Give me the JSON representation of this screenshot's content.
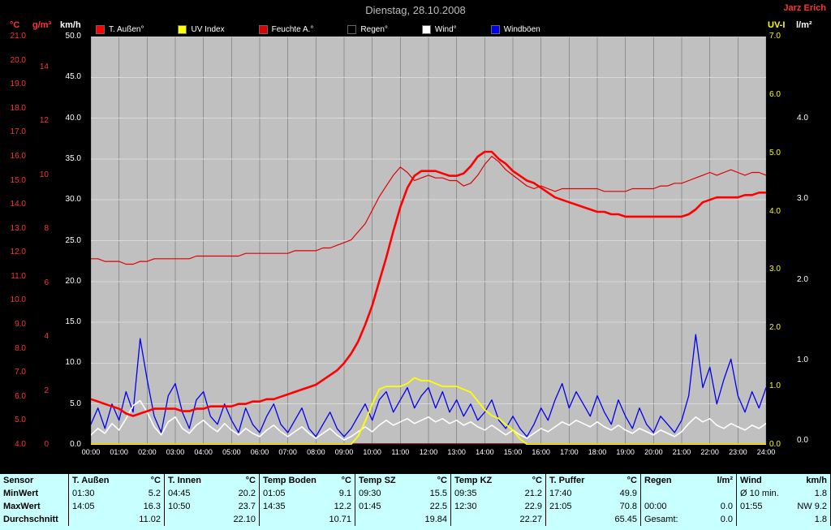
{
  "header": {
    "title": "Dienstag, 28.10.2008",
    "station": "Jarz Erich"
  },
  "axes": {
    "temp": {
      "unit": "°C",
      "min": 4,
      "max": 21,
      "ticks": [
        "21.0",
        "20.0",
        "19.0",
        "18.0",
        "17.0",
        "16.0",
        "15.0",
        "14.0",
        "13.0",
        "12.0",
        "11.0",
        "10.0",
        "9.0",
        "8.0",
        "7.0",
        "6.0",
        "5.0",
        "4.0"
      ]
    },
    "gm3": {
      "unit": "g/m³",
      "min": 0,
      "max": 14,
      "ticks": [
        "14",
        "12",
        "10",
        "8",
        "6",
        "4",
        "2",
        "0"
      ]
    },
    "kmh": {
      "unit": "km/h",
      "min": 0,
      "max": 50,
      "ticks": [
        "50.0",
        "45.0",
        "40.0",
        "35.0",
        "30.0",
        "25.0",
        "20.0",
        "15.0",
        "10.0",
        "5.0",
        "0.0"
      ]
    },
    "uv": {
      "unit": "UV-I",
      "min": 0,
      "max": 7,
      "ticks": [
        "7.0",
        "6.0",
        "5.0",
        "4.0",
        "3.0",
        "2.0",
        "1.0",
        "0.0"
      ]
    },
    "lm2": {
      "unit": "l/m²",
      "min": 0,
      "max": 5,
      "ticks": [
        "4.0",
        "3.0",
        "2.0",
        "1.0",
        "0.0"
      ]
    }
  },
  "legend": [
    {
      "label": "T. Außen°",
      "color": "#ff0000"
    },
    {
      "label": "UV Index",
      "color": "#ffff00"
    },
    {
      "label": "Feuchte A.°",
      "color": "#e00000"
    },
    {
      "label": "Regen°",
      "color": "#000000"
    },
    {
      "label": "Wind°",
      "color": "#ffffff"
    },
    {
      "label": "Windböen",
      "color": "#0000ee"
    }
  ],
  "chart_data": {
    "type": "line",
    "title": "Dienstag, 28.10.2008",
    "x_start_hour": 0,
    "x_step_hours": 0.25,
    "x_labels": [
      "00:00",
      "01:00",
      "02:00",
      "03:00",
      "04:00",
      "05:00",
      "06:00",
      "07:00",
      "08:00",
      "09:00",
      "10:00",
      "11:00",
      "12:00",
      "13:00",
      "14:00",
      "15:00",
      "16:00",
      "17:00",
      "18:00",
      "19:00",
      "20:00",
      "21:00",
      "22:00",
      "23:00",
      "24:00"
    ],
    "series": [
      {
        "name": "Regen",
        "axis": "lm2",
        "color": "#000000",
        "width": 1.2,
        "constant": 0
      },
      {
        "name": "Windböen",
        "axis": "kmh",
        "color": "#0000ee",
        "width": 1.3,
        "values": [
          2.5,
          4.5,
          2.0,
          5.0,
          3.0,
          6.5,
          4.0,
          13.0,
          8.0,
          3.5,
          1.5,
          6.0,
          7.5,
          4.0,
          2.0,
          5.5,
          6.5,
          3.5,
          2.5,
          5.0,
          3.0,
          1.5,
          4.5,
          2.5,
          1.5,
          3.5,
          5.0,
          2.5,
          1.5,
          3.0,
          4.5,
          2.0,
          1.0,
          2.5,
          4.0,
          2.0,
          1.0,
          2.0,
          3.5,
          5.0,
          3.0,
          5.5,
          6.5,
          4.0,
          5.5,
          7.0,
          4.5,
          6.0,
          7.0,
          4.5,
          6.5,
          4.0,
          5.5,
          3.5,
          5.0,
          3.0,
          4.0,
          5.5,
          3.0,
          2.0,
          3.5,
          2.0,
          1.0,
          2.5,
          4.5,
          3.0,
          5.5,
          7.5,
          4.5,
          6.5,
          5.0,
          3.5,
          6.0,
          4.0,
          2.5,
          5.5,
          3.5,
          2.0,
          4.5,
          2.5,
          1.5,
          3.5,
          2.5,
          1.5,
          3.0,
          6.0,
          13.5,
          7.0,
          9.5,
          5.0,
          8.0,
          10.5,
          6.0,
          4.0,
          6.5,
          4.5,
          7.0
        ]
      },
      {
        "name": "Wind",
        "axis": "kmh",
        "color": "#ffffff",
        "width": 1.6,
        "values": [
          1.2,
          2.0,
          1.4,
          2.6,
          1.8,
          3.2,
          4.8,
          5.4,
          4.0,
          2.2,
          1.2,
          2.8,
          3.4,
          2.0,
          1.4,
          2.4,
          3.0,
          2.2,
          1.6,
          2.6,
          1.8,
          1.2,
          2.0,
          1.4,
          1.0,
          1.8,
          2.4,
          1.6,
          1.0,
          1.6,
          2.2,
          1.4,
          0.8,
          1.4,
          2.0,
          1.2,
          0.6,
          1.0,
          1.6,
          2.2,
          1.6,
          2.4,
          3.0,
          2.4,
          2.8,
          3.2,
          2.6,
          3.0,
          3.4,
          2.8,
          3.2,
          2.6,
          3.0,
          2.4,
          2.8,
          2.2,
          1.8,
          2.4,
          1.8,
          1.2,
          1.8,
          1.2,
          0.8,
          1.4,
          2.0,
          1.6,
          2.2,
          2.8,
          2.4,
          3.0,
          2.6,
          2.2,
          2.8,
          2.2,
          1.8,
          2.4,
          1.8,
          1.4,
          2.0,
          1.6,
          1.2,
          1.8,
          1.4,
          1.0,
          1.6,
          2.6,
          3.4,
          2.8,
          3.2,
          2.4,
          2.0,
          2.6,
          2.2,
          1.8,
          2.4,
          2.0,
          2.6
        ]
      },
      {
        "name": "UV Index",
        "axis": "uv",
        "color": "#ffff00",
        "width": 1.8,
        "values": [
          0,
          0,
          0,
          0,
          0,
          0,
          0,
          0,
          0,
          0,
          0,
          0,
          0,
          0,
          0,
          0,
          0,
          0,
          0,
          0,
          0,
          0,
          0,
          0,
          0,
          0,
          0,
          0,
          0,
          0,
          0,
          0,
          0,
          0,
          0,
          0,
          0,
          0,
          0.15,
          0.4,
          0.7,
          0.95,
          1.0,
          1.0,
          1.0,
          1.05,
          1.15,
          1.1,
          1.1,
          1.05,
          1.0,
          1.0,
          1.0,
          0.95,
          0.9,
          0.75,
          0.6,
          0.5,
          0.45,
          0.35,
          0.25,
          0.1,
          0,
          0,
          0,
          0,
          0,
          0,
          0,
          0,
          0,
          0,
          0,
          0,
          0,
          0,
          0,
          0,
          0,
          0,
          0,
          0,
          0,
          0,
          0,
          0,
          0,
          0,
          0,
          0,
          0,
          0,
          0,
          0,
          0,
          0,
          0
        ]
      },
      {
        "name": "Feuchte A.",
        "axis": "gm3",
        "color": "#e00000",
        "width": 1.2,
        "values": [
          6.9,
          6.9,
          6.8,
          6.8,
          6.8,
          6.7,
          6.7,
          6.8,
          6.8,
          6.9,
          6.9,
          6.9,
          6.9,
          6.9,
          6.9,
          7.0,
          7.0,
          7.0,
          7.0,
          7.0,
          7.0,
          7.0,
          7.1,
          7.1,
          7.1,
          7.1,
          7.1,
          7.1,
          7.1,
          7.2,
          7.2,
          7.2,
          7.2,
          7.3,
          7.3,
          7.4,
          7.5,
          7.6,
          7.9,
          8.2,
          8.7,
          9.2,
          9.6,
          10.0,
          10.3,
          10.1,
          9.8,
          9.9,
          10.0,
          9.9,
          9.9,
          9.8,
          9.8,
          9.6,
          9.7,
          10.0,
          10.4,
          10.7,
          10.5,
          10.2,
          10.0,
          9.8,
          9.6,
          9.5,
          9.6,
          9.5,
          9.4,
          9.5,
          9.5,
          9.5,
          9.5,
          9.5,
          9.5,
          9.4,
          9.4,
          9.4,
          9.4,
          9.5,
          9.5,
          9.5,
          9.5,
          9.6,
          9.6,
          9.7,
          9.7,
          9.8,
          9.9,
          10.0,
          10.1,
          10.0,
          10.1,
          10.2,
          10.1,
          10.0,
          10.1,
          10.1,
          10.0
        ]
      },
      {
        "name": "T. Außen",
        "axis": "temp",
        "color": "#ff0000",
        "width": 2.6,
        "values": [
          5.9,
          5.8,
          5.7,
          5.6,
          5.5,
          5.3,
          5.2,
          5.3,
          5.4,
          5.5,
          5.5,
          5.5,
          5.5,
          5.4,
          5.4,
          5.5,
          5.5,
          5.6,
          5.6,
          5.6,
          5.6,
          5.7,
          5.7,
          5.8,
          5.8,
          5.9,
          5.9,
          6.0,
          6.1,
          6.2,
          6.3,
          6.4,
          6.5,
          6.7,
          6.9,
          7.1,
          7.4,
          7.8,
          8.3,
          9.0,
          9.8,
          10.8,
          11.8,
          12.9,
          13.9,
          14.7,
          15.2,
          15.4,
          15.4,
          15.4,
          15.3,
          15.2,
          15.2,
          15.3,
          15.6,
          16.0,
          16.2,
          16.2,
          15.9,
          15.7,
          15.4,
          15.2,
          15.0,
          14.9,
          14.7,
          14.5,
          14.3,
          14.2,
          14.1,
          14.0,
          13.9,
          13.8,
          13.7,
          13.7,
          13.6,
          13.6,
          13.5,
          13.5,
          13.5,
          13.5,
          13.5,
          13.5,
          13.5,
          13.5,
          13.5,
          13.6,
          13.8,
          14.1,
          14.2,
          14.3,
          14.3,
          14.3,
          14.3,
          14.4,
          14.4,
          14.5,
          14.5
        ]
      }
    ]
  },
  "table": {
    "row_headers": [
      "Sensor",
      "MinWert",
      "MaxWert",
      "Durchschnitt"
    ],
    "columns": [
      {
        "name": "T. Außen",
        "unit": "°C",
        "min": [
          "01:30",
          "5.2"
        ],
        "max": [
          "14:05",
          "16.3"
        ],
        "avg": "11.02"
      },
      {
        "name": "T. Innen",
        "unit": "°C",
        "min": [
          "04:45",
          "20.2"
        ],
        "max": [
          "10:50",
          "23.7"
        ],
        "avg": "22.10"
      },
      {
        "name": "Temp Boden",
        "unit": "°C",
        "min": [
          "01:05",
          "9.1"
        ],
        "max": [
          "14:35",
          "12.2"
        ],
        "avg": "10.71"
      },
      {
        "name": "Temp SZ",
        "unit": "°C",
        "min": [
          "09:30",
          "15.5"
        ],
        "max": [
          "01:45",
          "22.5"
        ],
        "avg": "19.84"
      },
      {
        "name": "Temp KZ",
        "unit": "°C",
        "min": [
          "09:35",
          "21.2"
        ],
        "max": [
          "12:30",
          "22.9"
        ],
        "avg": "22.27"
      },
      {
        "name": "T. Puffer",
        "unit": "°C",
        "min": [
          "17:40",
          "49.9"
        ],
        "max": [
          "21:05",
          "70.8"
        ],
        "avg": "65.45"
      },
      {
        "name": "Regen",
        "unit": "l/m²",
        "min": [
          "",
          ""
        ],
        "max": [
          "00:00",
          "0.0"
        ],
        "avg_label": "Gesamt:",
        "avg": "0.0"
      },
      {
        "name": "Wind",
        "unit": "km/h",
        "min": [
          "Ø 10 min.",
          "1.8"
        ],
        "max": [
          "01:55",
          "NW 9.2"
        ],
        "avg": "1.8"
      }
    ]
  }
}
